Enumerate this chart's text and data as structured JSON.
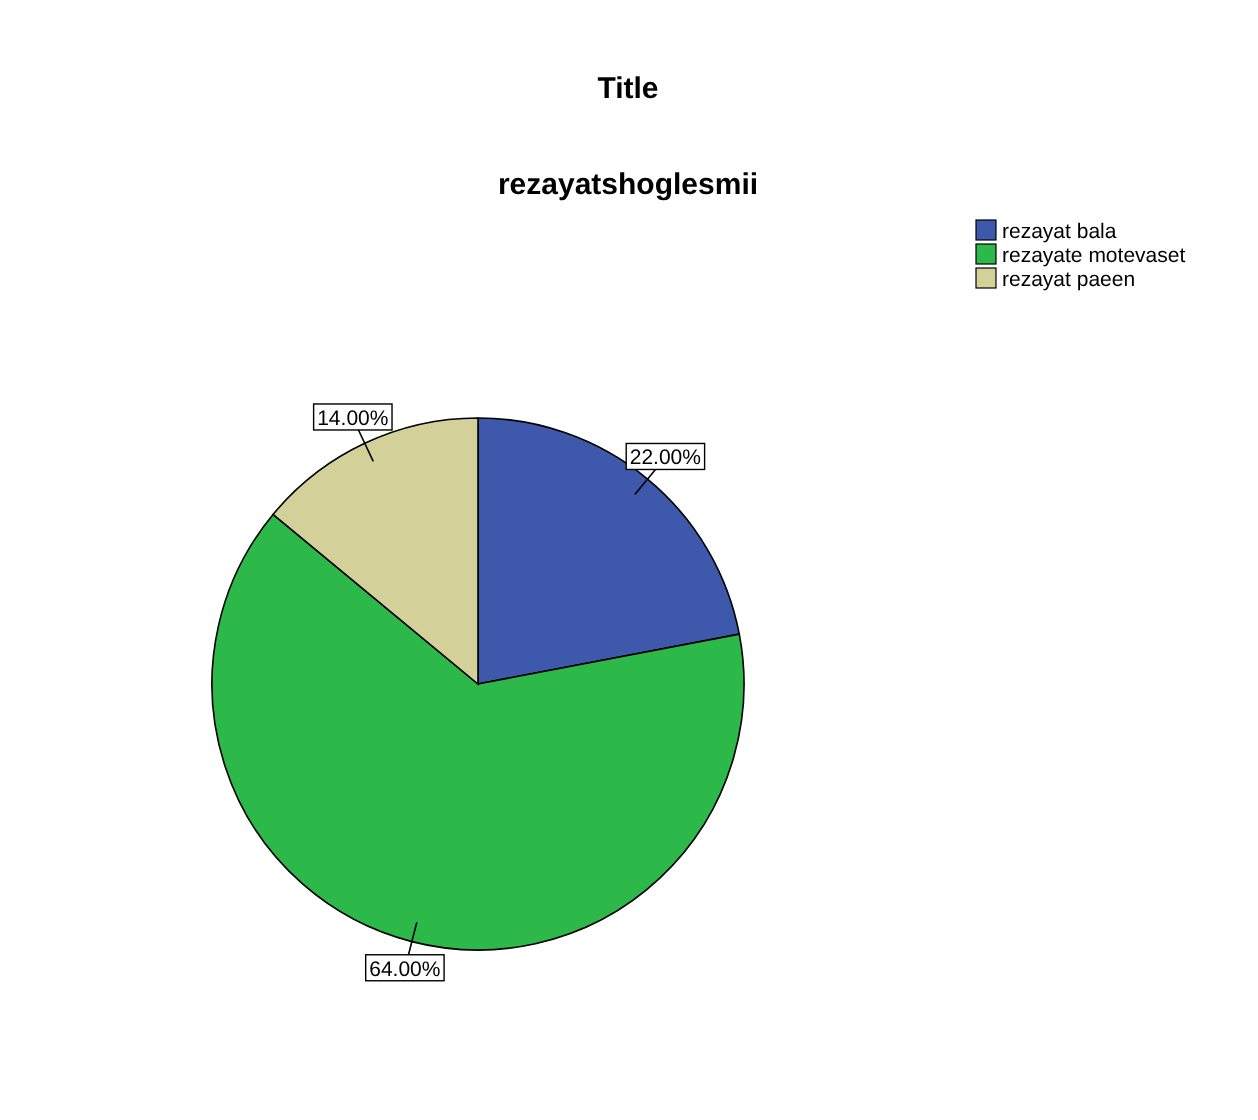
{
  "chart_data": {
    "type": "pie",
    "title": "Title",
    "subtitle": "rezayatshoglesmii",
    "categories": [
      "rezayat bala",
      "rezayate motevaset",
      "rezayat paeen"
    ],
    "values": [
      22,
      64,
      14
    ],
    "colors": [
      "#3e58ac",
      "#2db84a",
      "#d4d09a"
    ],
    "value_labels": [
      "22.00%",
      "64.00%",
      "14.00%"
    ],
    "legend": "top right"
  }
}
